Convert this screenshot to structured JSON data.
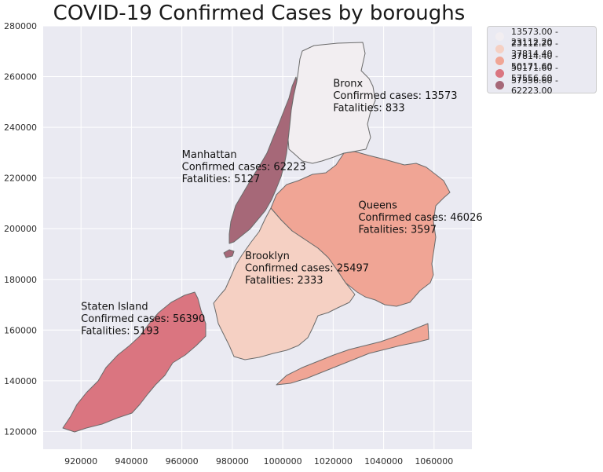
{
  "title": "COVID-19 Confirmed Cases by boroughs",
  "legend": {
    "items": [
      {
        "label": "13573.00 - 23112.20",
        "color": "#f2eef1"
      },
      {
        "label": "23112.20 - 37814.40",
        "color": "#f5d0c3"
      },
      {
        "label": "37814.40 - 50171.60",
        "color": "#f0a595"
      },
      {
        "label": "50171.60 - 57556.60",
        "color": "#da7580"
      },
      {
        "label": "57556.60 - 62223.00",
        "color": "#a66878"
      }
    ]
  },
  "chart_data": {
    "type": "choropleth",
    "title": "COVID-19 Confirmed Cases by boroughs",
    "xlim": [
      905000,
      1075000
    ],
    "ylim": [
      113000,
      280000
    ],
    "x_ticks": [
      920000,
      940000,
      960000,
      980000,
      1000000,
      1020000,
      1040000,
      1060000
    ],
    "y_ticks": [
      120000,
      140000,
      160000,
      180000,
      200000,
      220000,
      240000,
      260000,
      280000
    ],
    "grid": true,
    "legend_position": "outside-top-right",
    "regions": [
      {
        "name": "Bronx",
        "confirmed": 13573,
        "fatalities": 833,
        "label_xy": [
          1020000,
          256000
        ],
        "lines": [
          "Bronx",
          "Confirmed cases: 13573",
          "Fatalities: 833"
        ]
      },
      {
        "name": "Manhattan",
        "confirmed": 62223,
        "fatalities": 5127,
        "label_xy": [
          960000,
          228000
        ],
        "lines": [
          "Manhattan",
          "Confirmed cases: 62223",
          "Fatalities: 5127"
        ]
      },
      {
        "name": "Queens",
        "confirmed": 46026,
        "fatalities": 3597,
        "label_xy": [
          1030000,
          208000
        ],
        "lines": [
          "Queens",
          "Confirmed cases: 46026",
          "Fatalities: 3597"
        ]
      },
      {
        "name": "Brooklyn",
        "confirmed": 25497,
        "fatalities": 2333,
        "label_xy": [
          985000,
          188000
        ],
        "lines": [
          "Brooklyn",
          "Confirmed cases: 25497",
          "Fatalities: 2333"
        ]
      },
      {
        "name": "Staten Island",
        "confirmed": 56390,
        "fatalities": 5193,
        "label_xy": [
          920000,
          168000
        ],
        "lines": [
          "Staten Island",
          "Confirmed cases: 56390",
          "Fatalities: 5193"
        ]
      }
    ]
  }
}
